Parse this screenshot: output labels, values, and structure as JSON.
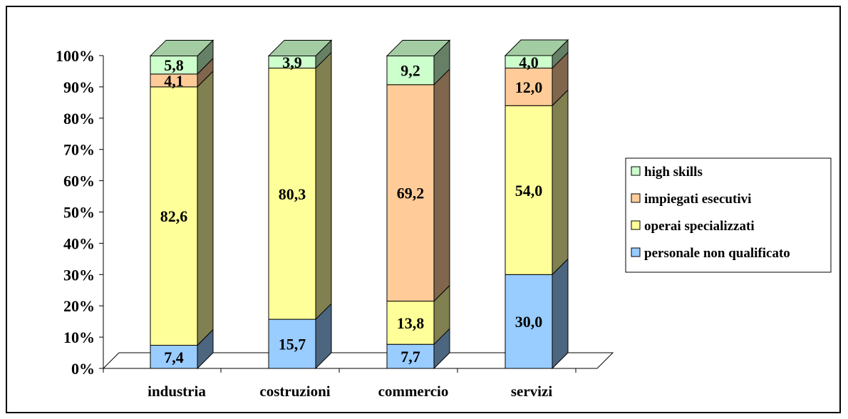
{
  "chart_data": {
    "type": "bar",
    "stacked": true,
    "percent_stacked": true,
    "three_d": true,
    "categories": [
      "industria",
      "costruzioni",
      "commercio",
      "servizi"
    ],
    "series": [
      {
        "name": "personale non qualificato",
        "values": [
          7.4,
          15.7,
          7.7,
          30.0
        ],
        "labels": [
          "7,4",
          "15,7",
          "7,7",
          "30,0"
        ],
        "color": "#99ccff",
        "side_color": "#4d6680",
        "top_color": "#7aa3cc"
      },
      {
        "name": "operai specializzati",
        "values": [
          82.6,
          80.3,
          13.8,
          54.0
        ],
        "labels": [
          "82,6",
          "80,3",
          "13,8",
          "54,0"
        ],
        "color": "#ffff99",
        "side_color": "#808050",
        "top_color": "#cccc7a"
      },
      {
        "name": "impiegati esecutivi",
        "values": [
          4.1,
          0,
          69.2,
          12.0
        ],
        "labels": [
          "4,1",
          "",
          "69,2",
          "12,0"
        ],
        "color": "#ffcc99",
        "side_color": "#80664d",
        "top_color": "#cca37a"
      },
      {
        "name": "high skills",
        "values": [
          5.8,
          3.9,
          9.2,
          4.0
        ],
        "labels": [
          "5,8",
          "3,9",
          "9,2",
          "4,0"
        ],
        "color": "#ccffcc",
        "side_color": "#668066",
        "top_color": "#a3cca3"
      }
    ],
    "y_ticks": [
      "0%",
      "10%",
      "20%",
      "30%",
      "40%",
      "50%",
      "60%",
      "70%",
      "80%",
      "90%",
      "100%"
    ],
    "ylim": [
      0,
      100
    ],
    "legend_position": "right",
    "grid": false,
    "title": "",
    "xlabel": "",
    "ylabel": ""
  }
}
